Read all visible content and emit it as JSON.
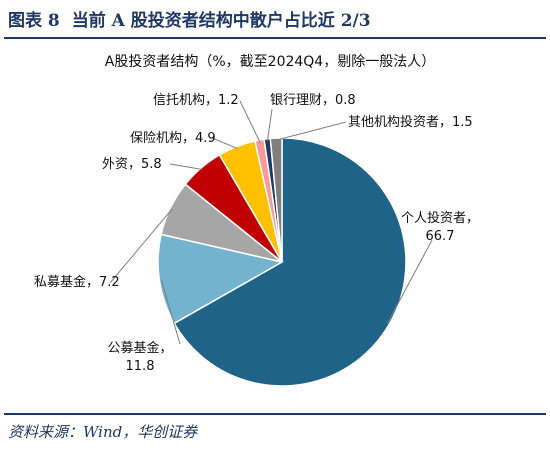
{
  "figure": {
    "number": "图表 8",
    "title": "当前 A 股投资者结构中散户占比近 2/3",
    "source": "资料来源：Wind，华创证券"
  },
  "chart_data": {
    "type": "pie",
    "title": "A股投资者结构（%，截至2024Q4，剔除一般法人）",
    "slices": [
      {
        "name": "个人投资者",
        "value": 66.7,
        "color": "#1f6388"
      },
      {
        "name": "公募基金",
        "value": 11.8,
        "color": "#74b3d0"
      },
      {
        "name": "私募基金",
        "value": 7.2,
        "color": "#a6a6a6"
      },
      {
        "name": "外资",
        "value": 5.8,
        "color": "#c00000"
      },
      {
        "name": "保险机构",
        "value": 4.9,
        "color": "#ffc000"
      },
      {
        "name": "信托机构",
        "value": 1.2,
        "color": "#ff9999"
      },
      {
        "name": "银行理财",
        "value": 0.8,
        "color": "#1f3864"
      },
      {
        "name": "其他机构投资者",
        "value": 1.5,
        "color": "#7f7f7f"
      }
    ],
    "labels": [
      {
        "name_bind": "个人投资者，",
        "value_text": "66.7"
      },
      {
        "name_bind": "公募基金，",
        "value_text": "11.8"
      },
      {
        "name_bind": "私募基金，",
        "value_text": "7.2"
      },
      {
        "name_bind": "外资，",
        "value_text": "5.8"
      },
      {
        "name_bind": "保险机构，",
        "value_text": "4.9"
      },
      {
        "name_bind": "信托机构，",
        "value_text": "1.2"
      },
      {
        "name_bind": "银行理财，",
        "value_text": "0.8"
      },
      {
        "name_bind": "其他机构投资者，",
        "value_text": "1.5"
      }
    ]
  }
}
